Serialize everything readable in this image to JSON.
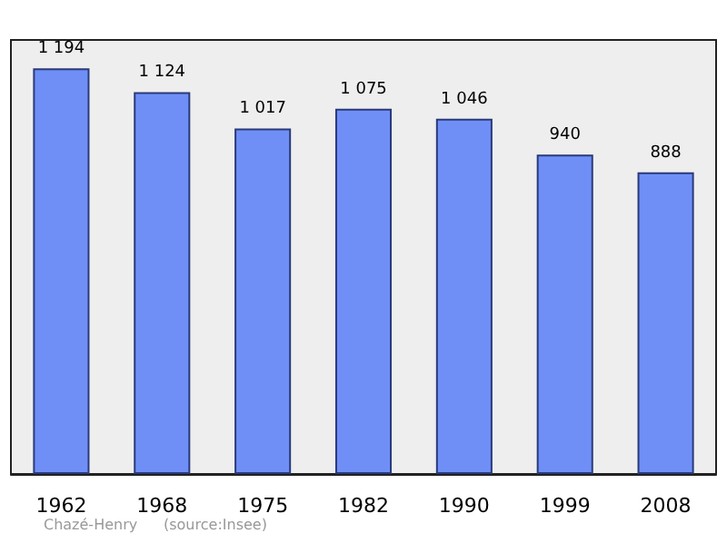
{
  "chart_data": {
    "type": "bar",
    "categories": [
      "1962",
      "1968",
      "1975",
      "1982",
      "1990",
      "1999",
      "2008"
    ],
    "values": [
      1194,
      1124,
      1017,
      1075,
      1046,
      940,
      888
    ],
    "value_labels": [
      "1 194",
      "1 124",
      "1 017",
      "1 075",
      "1 046",
      "940",
      "888"
    ],
    "color": "#6f8ff7",
    "annotations": [
      "Chazé-Henry",
      "(source:Insee)"
    ]
  }
}
